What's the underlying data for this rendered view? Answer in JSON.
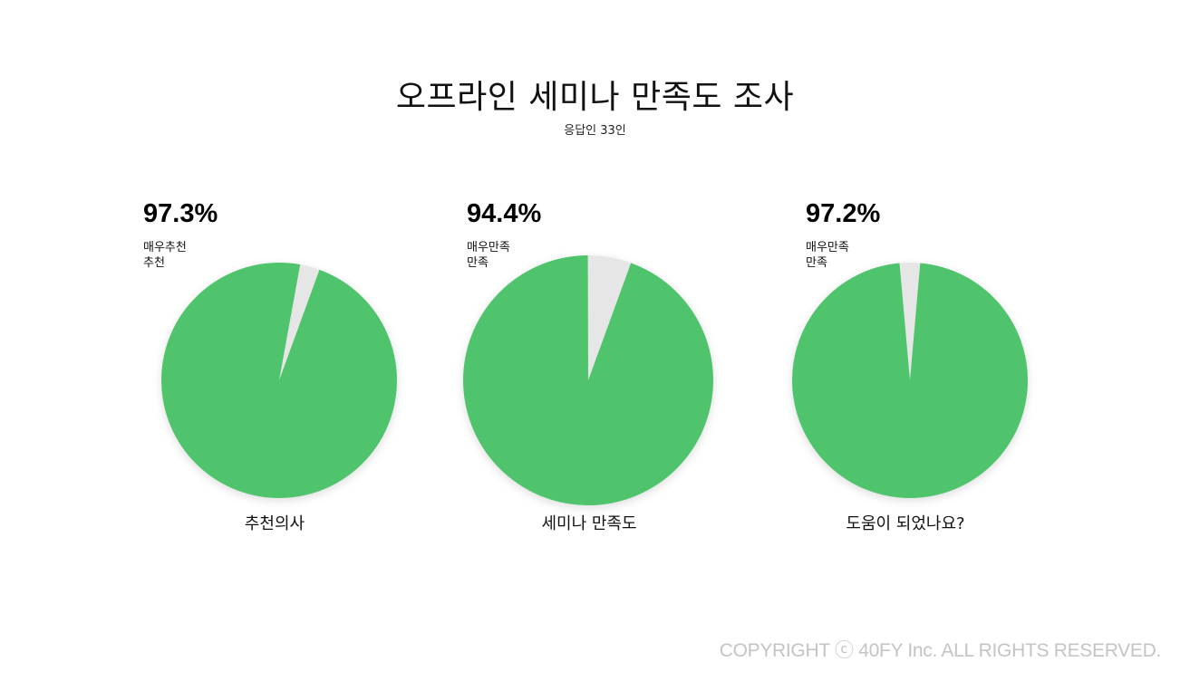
{
  "page": {
    "title": "오프라인 세미나 만족도 조사",
    "subtitle": "응답인 33인",
    "footer": "COPYRIGHT ⓒ 40FY Inc. ALL RIGHTS RESERVED."
  },
  "colors": {
    "positive": "#4fc46d",
    "negative": "#e6e6e6"
  },
  "chart_data": [
    {
      "type": "pie",
      "title": "추천의사",
      "headline": "97.3%",
      "headline_label": "매우추천\n추천",
      "slices": [
        {
          "label": "매우추천 · 추천",
          "value": 97.3
        },
        {
          "label": "",
          "value": 2.7
        }
      ],
      "positive_start_deg": 20
    },
    {
      "type": "pie",
      "title": "세미나 만족도",
      "headline": "94.4%",
      "headline_label": "매우만족\n만족",
      "slices": [
        {
          "label": "매우만족 · 만족",
          "value": 94.4
        },
        {
          "label": "",
          "value": 5.6
        }
      ],
      "positive_start_deg": 20
    },
    {
      "type": "pie",
      "title": "도움이 되었나요?",
      "headline": "97.2%",
      "headline_label": "매우만족\n만족",
      "slices": [
        {
          "label": "매우만족 · 만족",
          "value": 97.2
        },
        {
          "label": "",
          "value": 2.8
        }
      ],
      "positive_start_deg": 5
    }
  ]
}
